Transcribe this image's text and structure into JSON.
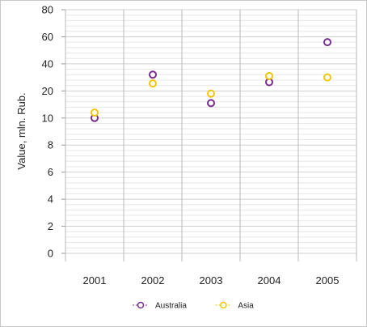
{
  "chart_data": {
    "type": "scatter",
    "title": "",
    "xlabel": "",
    "ylabel": "Value, mln. Rub.",
    "categories": [
      "2001",
      "2002",
      "2003",
      "2004",
      "2005"
    ],
    "y_tick_labels": [
      "0",
      "2",
      "4",
      "6",
      "8",
      "10",
      "20",
      "40",
      "60",
      "80"
    ],
    "grid": true,
    "legend_position": "bottom",
    "series": [
      {
        "name": "Australia",
        "color": "#7b2d8e",
        "values": [
          10,
          32,
          15.5,
          26.5,
          56
        ]
      },
      {
        "name": "Asia",
        "color": "#f2c500",
        "values": [
          12,
          25.5,
          19,
          31,
          30
        ]
      }
    ]
  }
}
